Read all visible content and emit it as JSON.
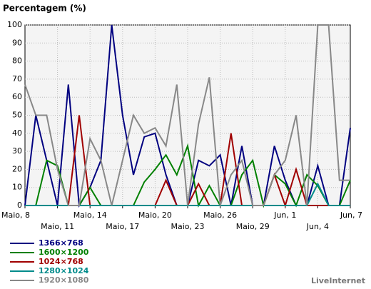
{
  "chart_data": {
    "type": "line",
    "title": "Percentagem (%)",
    "brand": "LiveInternet",
    "categories": [
      "Maio, 8",
      null,
      null,
      "Maio, 11",
      null,
      null,
      "Maio, 14",
      null,
      null,
      "Maio, 17",
      null,
      null,
      "Maio, 20",
      null,
      null,
      "Maio, 23",
      null,
      null,
      "Maio, 26",
      null,
      null,
      "Maio, 29",
      null,
      null,
      "Jun, 1",
      null,
      null,
      "Jun, 4",
      null,
      null,
      "Jun, 7"
    ],
    "ylim": [
      0,
      100
    ],
    "yticks": [
      0,
      10,
      20,
      30,
      40,
      50,
      60,
      70,
      80,
      90,
      100
    ],
    "grid": true,
    "series": [
      {
        "name": "1366×768",
        "color": "#000080",
        "values": [
          0,
          50,
          25,
          0,
          67,
          0,
          10,
          25,
          100,
          50,
          17,
          38,
          40,
          17,
          0,
          0,
          25,
          22,
          28,
          0,
          33,
          0,
          0,
          33,
          14,
          0,
          0,
          22,
          0,
          0,
          43
        ]
      },
      {
        "name": "1600×1200",
        "color": "#008000",
        "values": [
          0,
          0,
          25,
          22,
          0,
          0,
          10,
          0,
          0,
          0,
          0,
          13,
          20,
          28,
          17,
          33,
          0,
          11,
          0,
          0,
          17,
          25,
          0,
          17,
          12,
          0,
          17,
          11,
          0,
          0,
          14
        ]
      },
      {
        "name": "1024×768",
        "color": "#a00000",
        "values": [
          0,
          0,
          0,
          0,
          0,
          50,
          0,
          0,
          0,
          0,
          0,
          0,
          0,
          14,
          0,
          0,
          12,
          0,
          0,
          40,
          0,
          0,
          0,
          17,
          0,
          20,
          0,
          0,
          0,
          0,
          0
        ]
      },
      {
        "name": "1280×1024",
        "color": "#008b8b",
        "values": [
          0,
          0,
          0,
          0,
          0,
          0,
          0,
          0,
          0,
          0,
          0,
          0,
          0,
          0,
          0,
          0,
          0,
          0,
          0,
          0,
          0,
          0,
          0,
          0,
          0,
          0,
          0,
          12,
          0,
          0,
          0
        ]
      },
      {
        "name": "1920×1080",
        "color": "#888888",
        "values": [
          67,
          50,
          50,
          20,
          0,
          0,
          37,
          25,
          0,
          25,
          50,
          40,
          43,
          33,
          67,
          0,
          45,
          71,
          0,
          17,
          25,
          0,
          0,
          17,
          25,
          50,
          0,
          100,
          100,
          14,
          14
        ]
      }
    ]
  }
}
